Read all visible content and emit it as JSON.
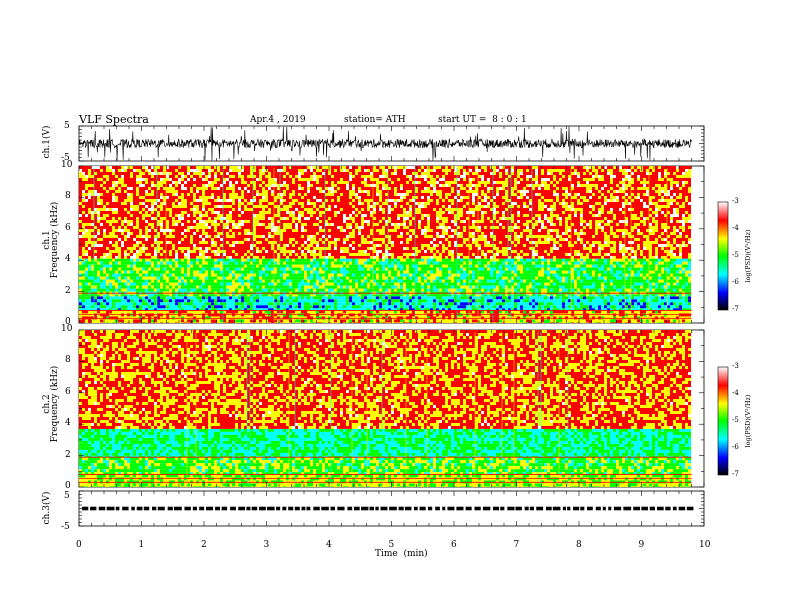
{
  "header": {
    "title": "VLF Spectra",
    "date": "Apr.4 , 2019",
    "station": "station= ATH",
    "start": "start UT =  8 : 0 : 1"
  },
  "colors": {
    "spectrum": [
      "#000000",
      "#0000ff",
      "#00ffff",
      "#00ff00",
      "#ffff00",
      "#ff0000",
      "#ffffff"
    ],
    "trace": "#000000"
  },
  "chart_data": [
    {
      "type": "line",
      "name": "ch1-waveform",
      "ylabel": "ch.1(V)",
      "ylim": [
        -5,
        5
      ],
      "yticks": [
        "5",
        "-5"
      ],
      "x_range_min": [
        0,
        9.8
      ],
      "description_values": {
        "baseline": 0,
        "amplitude": 2.5
      }
    },
    {
      "type": "heatmap",
      "name": "ch1-spectrogram",
      "ylabel": "ch.1\nFrequency (kHz)",
      "ylabel_top": "ch.1",
      "ylabel_bottom": "Frequency (kHz)",
      "ylim": [
        0,
        10
      ],
      "yticks": [
        "0",
        "2",
        "4",
        "6",
        "8",
        "10"
      ],
      "xlim": [
        0,
        9.8
      ],
      "bands_khz": [
        {
          "from": 0,
          "to": 0.8,
          "log_psd": -4.2
        },
        {
          "from": 0.8,
          "to": 1.7,
          "log_psd": -5.6
        },
        {
          "from": 1.7,
          "to": 4.1,
          "log_psd": -5.0
        },
        {
          "from": 4.1,
          "to": 10,
          "log_psd": -3.8
        }
      ],
      "colorbar": {
        "label": "log(PSD)(V²/Hz)",
        "min": -7,
        "max": -3,
        "ticks": [
          "-3",
          "-4",
          "-5",
          "-6",
          "-7"
        ]
      }
    },
    {
      "type": "heatmap",
      "name": "ch2-spectrogram",
      "ylabel_top": "ch.2",
      "ylabel_bottom": "Frequency (kHz)",
      "ylim": [
        0,
        10
      ],
      "yticks": [
        "0",
        "2",
        "4",
        "6",
        "8",
        "10"
      ],
      "xlim": [
        0,
        9.8
      ],
      "bands_khz": [
        {
          "from": 0,
          "to": 0.8,
          "log_psd": -4.6
        },
        {
          "from": 0.8,
          "to": 1.9,
          "log_psd": -4.9
        },
        {
          "from": 1.9,
          "to": 3.7,
          "log_psd": -5.3
        },
        {
          "from": 3.7,
          "to": 10,
          "log_psd": -3.9
        }
      ],
      "colorbar": {
        "label": "log(PSD)(V²/Hz)",
        "min": -7,
        "max": -3,
        "ticks": [
          "-3",
          "-4",
          "-5",
          "-6",
          "-7"
        ]
      }
    },
    {
      "type": "line",
      "name": "ch3-waveform",
      "ylabel": "ch.3(V)",
      "ylim": [
        -5,
        5
      ],
      "yticks": [
        "5",
        "-5"
      ],
      "level": 0,
      "xlim": [
        0,
        9.8
      ]
    }
  ],
  "xaxis": {
    "label": "Time  (min)",
    "ticks": [
      "0",
      "1",
      "2",
      "3",
      "4",
      "5",
      "6",
      "7",
      "8",
      "9",
      "10"
    ],
    "range": [
      0,
      10
    ]
  }
}
